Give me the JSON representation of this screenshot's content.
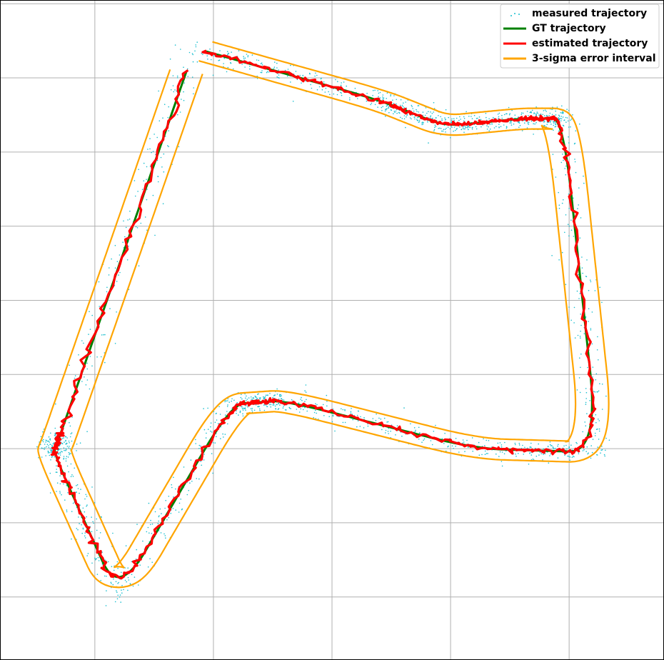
{
  "chart_data": {
    "type": "line",
    "title": "",
    "xlabel": "",
    "ylabel": "",
    "grid": true,
    "xlim": [
      -0.8,
      4.8
    ],
    "ylim": [
      -0.85,
      8.05
    ],
    "xticks": [
      0,
      1,
      2,
      3,
      4
    ],
    "yticks": [
      0,
      1,
      2,
      3,
      4,
      5,
      6,
      7,
      8
    ],
    "tick_labels_visible": false,
    "legend_position": "top-right",
    "gt_path": [
      [
        0.84,
        7.4
      ],
      [
        2.4,
        6.7
      ],
      [
        2.95,
        6.35
      ],
      [
        3.6,
        6.45
      ],
      [
        3.95,
        6.45
      ],
      [
        4.25,
        1.95
      ],
      [
        3.2,
        2.0
      ],
      [
        1.6,
        2.65
      ],
      [
        1.15,
        2.6
      ],
      [
        0.2,
        0.0
      ],
      [
        -0.35,
        1.95
      ],
      [
        -0.3,
        2.15
      ],
      [
        0.84,
        7.4
      ]
    ],
    "series": [
      {
        "name": "measured trajectory",
        "type": "scatter",
        "color": "#17becf",
        "points_per_segment": 170,
        "noise_sd": 0.07
      },
      {
        "name": "GT trajectory",
        "type": "line",
        "color": "#008000"
      },
      {
        "name": "estimated trajectory",
        "type": "line",
        "color": "#ff0000",
        "noise_sd": 0.015
      },
      {
        "name": "3-sigma error interval",
        "type": "line",
        "color": "#ffa500",
        "half_width": 0.14
      }
    ]
  },
  "legend": {
    "entries": [
      "measured trajectory",
      "GT trajectory",
      "estimated trajectory",
      "3-sigma error interval"
    ]
  }
}
